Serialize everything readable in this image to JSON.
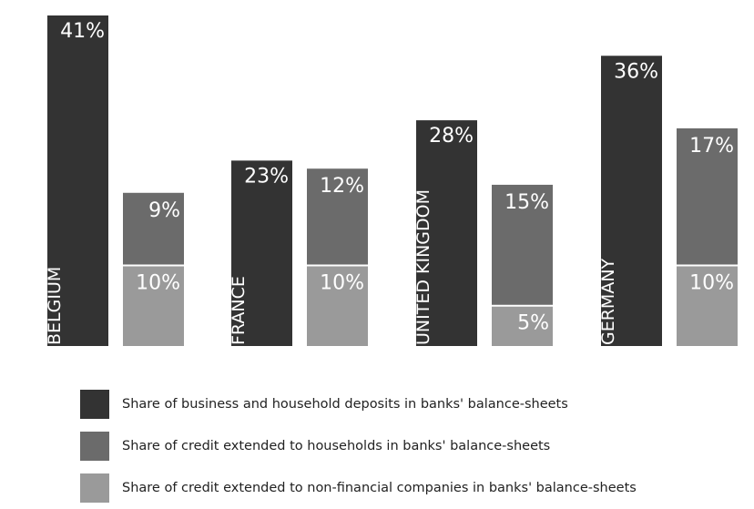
{
  "chart_data": {
    "type": "bar",
    "stacked_series": [
      "households",
      "companies"
    ],
    "categories": [
      "BELGIUM",
      "FRANCE",
      "UNITED KINGDOM",
      "GERMANY"
    ],
    "series": [
      {
        "name": "Share of business and household deposits in banks' balance-sheets",
        "key": "deposits",
        "color": "#333333",
        "values": [
          41,
          23,
          28,
          36
        ],
        "labels": [
          "41%",
          "23%",
          "28%",
          "36%"
        ]
      },
      {
        "name": "Share of credit extended to households in banks' balance-sheets",
        "key": "households",
        "color": "#6b6b6b",
        "values": [
          9,
          12,
          15,
          17
        ],
        "labels": [
          "9%",
          "12%",
          "15%",
          "17%"
        ]
      },
      {
        "name": "Share of credit extended to non-financial companies in banks' balance-sheets",
        "key": "companies",
        "color": "#9a9a9a",
        "values": [
          10,
          10,
          5,
          10
        ],
        "labels": [
          "10%",
          "10%",
          "5%",
          "10%"
        ]
      }
    ],
    "ylim": [
      0,
      41
    ],
    "grid": false,
    "legend_position": "bottom-left"
  }
}
